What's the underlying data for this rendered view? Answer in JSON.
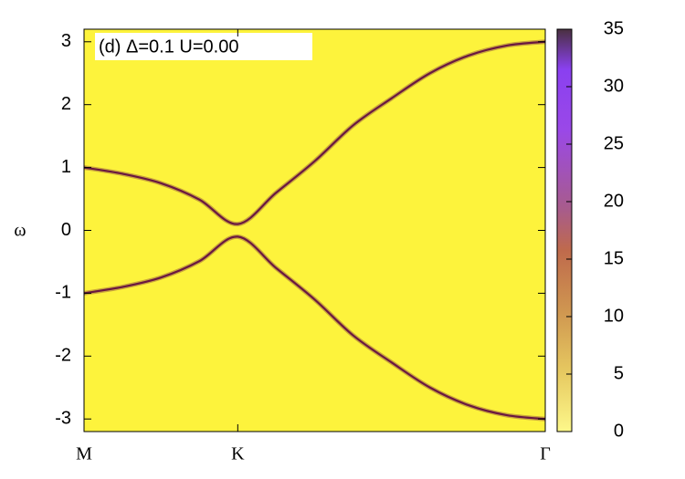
{
  "chart_data": {
    "type": "heatmap",
    "annotation": "(d)  Δ=0.1  U=0.00",
    "y_label": "ω",
    "x": [
      0,
      0.25,
      0.5,
      0.75,
      1,
      1.25,
      1.5,
      1.75,
      2,
      2.25,
      2.5,
      2.75,
      3
    ],
    "series": [
      {
        "color": "#6a1840",
        "values": [
          1,
          0.9,
          0.75,
          0.49,
          0.1,
          0.6,
          1.1,
          1.67,
          2.1,
          2.5,
          2.78,
          2.94,
          3.0
        ]
      },
      {
        "color": "#6a1840",
        "values": [
          -1,
          -0.9,
          -0.75,
          -0.49,
          -0.1,
          -0.6,
          -1.1,
          -1.67,
          -2.1,
          -2.5,
          -2.78,
          -2.94,
          -3.0
        ]
      }
    ],
    "xlim": [
      0,
      3
    ],
    "xticks": [
      {
        "value": 0,
        "label": "M"
      },
      {
        "value": 1,
        "label": "K"
      },
      {
        "value": 3,
        "label": "Γ"
      }
    ],
    "ylim": [
      -3.2,
      3.2
    ],
    "yticks": [
      -3,
      -2,
      -1,
      0,
      1,
      2,
      3
    ],
    "colorbar_lim": [
      0,
      35
    ],
    "colorbar_ticks": [
      0,
      5,
      10,
      15,
      20,
      25,
      30,
      35
    ],
    "background_color": "#fdf33c"
  }
}
